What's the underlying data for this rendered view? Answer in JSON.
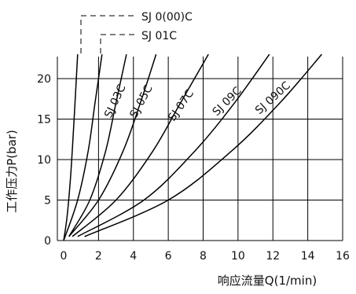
{
  "chart_data": {
    "type": "line",
    "xlabel": "响应流量Q(1/min)",
    "ylabel": "工作压力P(bar)",
    "xlim": [
      0,
      16
    ],
    "ylim": [
      0,
      23
    ],
    "xticks": [
      0,
      2,
      4,
      6,
      8,
      10,
      12,
      14,
      16
    ],
    "yticks": [
      0,
      5,
      10,
      15,
      20
    ],
    "grid": true,
    "series": [
      {
        "name": "SJ 0(00)C",
        "x": [
          0,
          0.2,
          0.4,
          0.6,
          0.8
        ],
        "y": [
          0,
          3,
          8,
          15,
          23
        ]
      },
      {
        "name": "SJ 01C",
        "x": [
          0,
          0.8,
          1.4,
          1.8,
          2.2
        ],
        "y": [
          0,
          5,
          11,
          17,
          23
        ]
      },
      {
        "name": "SJ 03C",
        "x": [
          0.3,
          1.5,
          2.4,
          3.0,
          3.6
        ],
        "y": [
          0.5,
          5,
          11,
          17,
          23
        ]
      },
      {
        "name": "SJ 05C",
        "x": [
          0.3,
          2.0,
          3.4,
          4.4,
          5.3
        ],
        "y": [
          0.5,
          5,
          11,
          17,
          23
        ]
      },
      {
        "name": "SJ 07C",
        "x": [
          0.5,
          3.0,
          5.1,
          6.7,
          8.3
        ],
        "y": [
          0.5,
          5,
          11,
          17,
          23
        ]
      },
      {
        "name": "SJ 09C",
        "x": [
          0.8,
          4.6,
          7.5,
          9.8,
          11.8
        ],
        "y": [
          0.5,
          5,
          11,
          17,
          23
        ]
      },
      {
        "name": "SJ 090C",
        "x": [
          1.2,
          6.0,
          9.6,
          12.4,
          14.8
        ],
        "y": [
          0.5,
          5,
          11,
          17,
          23
        ]
      }
    ]
  }
}
